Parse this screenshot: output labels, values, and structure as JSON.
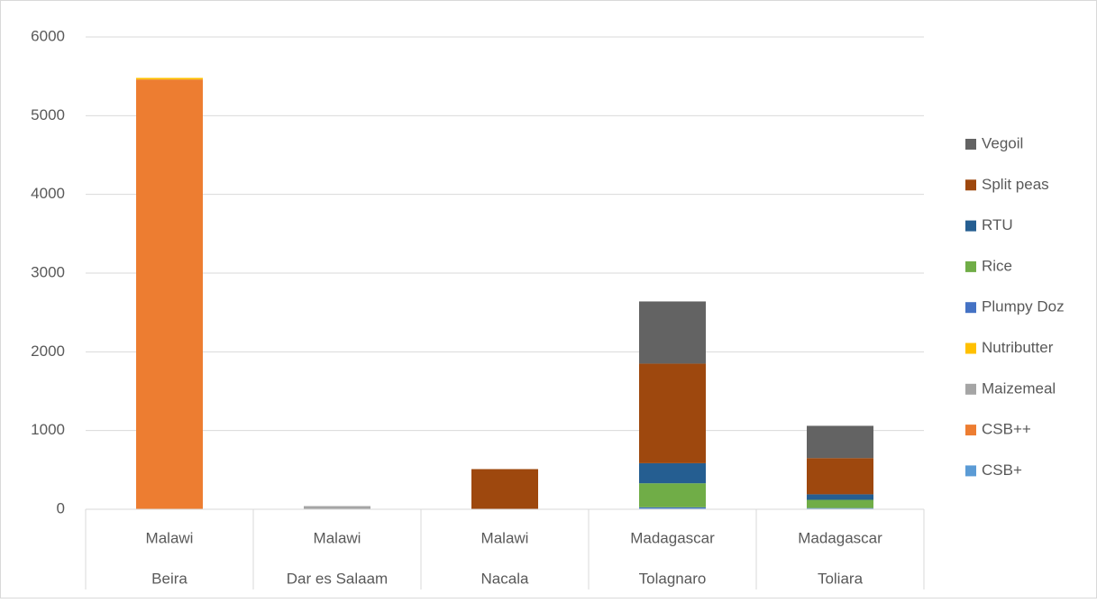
{
  "chart_data": {
    "type": "stacked_bar",
    "categories": [
      "Beira",
      "Dar es Salaam",
      "Nacala",
      "Tolagnaro",
      "Toliara"
    ],
    "category_groups": [
      "Malawi",
      "Malawi",
      "Malawi",
      "Madagascar",
      "Madagascar"
    ],
    "series": [
      {
        "name": "CSB+",
        "color": "#5b9bd5",
        "values": [
          0,
          0,
          0,
          10,
          10
        ]
      },
      {
        "name": "CSB++",
        "color": "#ed7d31",
        "values": [
          5460,
          0,
          0,
          0,
          0
        ]
      },
      {
        "name": "Maizemeal",
        "color": "#a5a5a5",
        "values": [
          0,
          40,
          0,
          0,
          0
        ]
      },
      {
        "name": "Nutributter",
        "color": "#ffc000",
        "values": [
          20,
          0,
          0,
          0,
          0
        ]
      },
      {
        "name": "Plumpy Doz",
        "color": "#4472c4",
        "values": [
          0,
          0,
          0,
          15,
          5
        ]
      },
      {
        "name": "Rice",
        "color": "#70ad47",
        "values": [
          0,
          0,
          0,
          305,
          105
        ]
      },
      {
        "name": "RTU",
        "color": "#255e91",
        "values": [
          0,
          0,
          0,
          255,
          70
        ]
      },
      {
        "name": "Split peas",
        "color": "#9e480e",
        "values": [
          0,
          0,
          510,
          1265,
          460
        ]
      },
      {
        "name": "Vegoil",
        "color": "#636363",
        "values": [
          0,
          0,
          0,
          790,
          410
        ]
      }
    ],
    "ylim": [
      0,
      6000
    ],
    "yticks": [
      0,
      1000,
      2000,
      3000,
      4000,
      5000,
      6000
    ],
    "grid": true,
    "legend": "right"
  }
}
